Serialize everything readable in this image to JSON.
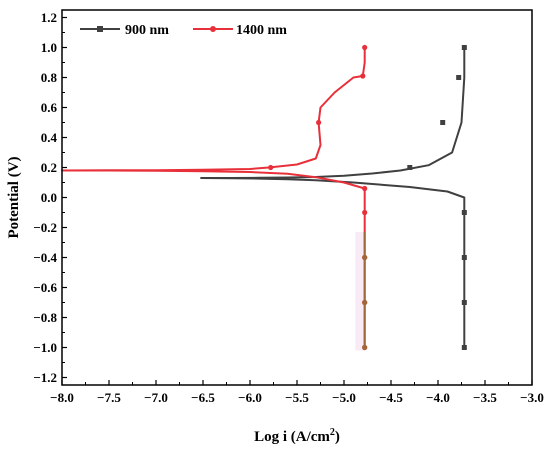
{
  "chart_data": {
    "type": "line",
    "title": "",
    "xlabel": "Log i (A/cm",
    "xlabel_sup": "2",
    "xlabel_suffix": ")",
    "ylabel": "Potential (V)",
    "xlim": [
      -8.0,
      -3.0
    ],
    "ylim": [
      -1.25,
      1.25
    ],
    "xticks": [
      -8.0,
      -7.5,
      -7.0,
      -6.5,
      -6.0,
      -5.5,
      -5.0,
      -4.5,
      -4.0,
      -3.5,
      -3.0
    ],
    "xtick_labels": [
      "−8.0",
      "−7.5",
      "−7.0",
      "−6.5",
      "−6.0",
      "−5.5",
      "−5.0",
      "−4.5",
      "−4.0",
      "−3.5",
      "−3.0"
    ],
    "yticks": [
      -1.2,
      -1.0,
      -0.8,
      -0.6,
      -0.4,
      -0.2,
      0.0,
      0.2,
      0.4,
      0.6,
      0.8,
      1.0,
      1.2
    ],
    "ytick_labels": [
      "−1.2",
      "−1.0",
      "−0.8",
      "−0.6",
      "−0.4",
      "−0.2",
      "0.0",
      "0.2",
      "0.4",
      "0.6",
      "0.8",
      "1.0",
      "1.2"
    ],
    "grid": false,
    "legend_position": "top-left",
    "series": [
      {
        "name": "900 nm",
        "color": "#404040",
        "marker": "square",
        "x": [
          -3.72,
          -3.72,
          -3.72,
          -3.72,
          -3.72,
          -3.9,
          -4.3,
          -4.9,
          -5.3,
          -5.6,
          -5.9,
          -6.2,
          -6.52,
          -6.2,
          -5.9,
          -5.6,
          -5.3,
          -5.0,
          -4.7,
          -4.4,
          -4.1,
          -3.85,
          -3.75,
          -3.72,
          -3.72,
          -3.72,
          -3.72,
          -3.72
        ],
        "y": [
          -1.0,
          -0.7,
          -0.4,
          -0.1,
          0.0,
          0.04,
          0.07,
          0.1,
          0.115,
          0.122,
          0.126,
          0.128,
          0.13,
          0.13,
          0.131,
          0.133,
          0.137,
          0.145,
          0.16,
          0.18,
          0.215,
          0.3,
          0.5,
          0.8,
          0.9,
          0.94,
          0.97,
          1.0
        ],
        "markers": [
          [
            -3.72,
            -1.0
          ],
          [
            -3.72,
            -0.7
          ],
          [
            -3.72,
            -0.4
          ],
          [
            -3.72,
            -0.1
          ],
          [
            -4.3,
            0.2
          ],
          [
            -3.95,
            0.5
          ],
          [
            -3.78,
            0.8
          ],
          [
            -3.72,
            1.0
          ]
        ]
      },
      {
        "name": "1400 nm",
        "color": "#e8303a",
        "marker": "circle",
        "x": [
          -4.78,
          -4.78,
          -4.78,
          -4.78,
          -4.78,
          -4.78,
          -5.0,
          -5.3,
          -5.6,
          -6.0,
          -6.5,
          -7.0,
          -7.5,
          -8.0,
          -7.5,
          -7.0,
          -6.5,
          -6.0,
          -5.8,
          -5.5,
          -5.3,
          -5.25,
          -5.27,
          -5.25,
          -5.1,
          -4.9,
          -4.8,
          -4.78,
          -4.78
        ],
        "y": [
          -1.0,
          -0.7,
          -0.4,
          -0.1,
          0.0,
          0.06,
          0.1,
          0.135,
          0.158,
          0.17,
          0.175,
          0.178,
          0.18,
          0.18,
          0.181,
          0.182,
          0.185,
          0.19,
          0.2,
          0.22,
          0.26,
          0.35,
          0.5,
          0.6,
          0.7,
          0.8,
          0.81,
          0.9,
          1.0
        ],
        "markers": [
          [
            -4.78,
            -1.0
          ],
          [
            -4.78,
            -0.7
          ],
          [
            -4.78,
            -0.4
          ],
          [
            -4.78,
            -0.1
          ],
          [
            -4.78,
            0.06
          ],
          [
            -5.78,
            0.2
          ],
          [
            -5.27,
            0.5
          ],
          [
            -4.8,
            0.81
          ],
          [
            -4.78,
            1.0
          ]
        ]
      }
    ],
    "overlap_color": "#a0683a"
  }
}
